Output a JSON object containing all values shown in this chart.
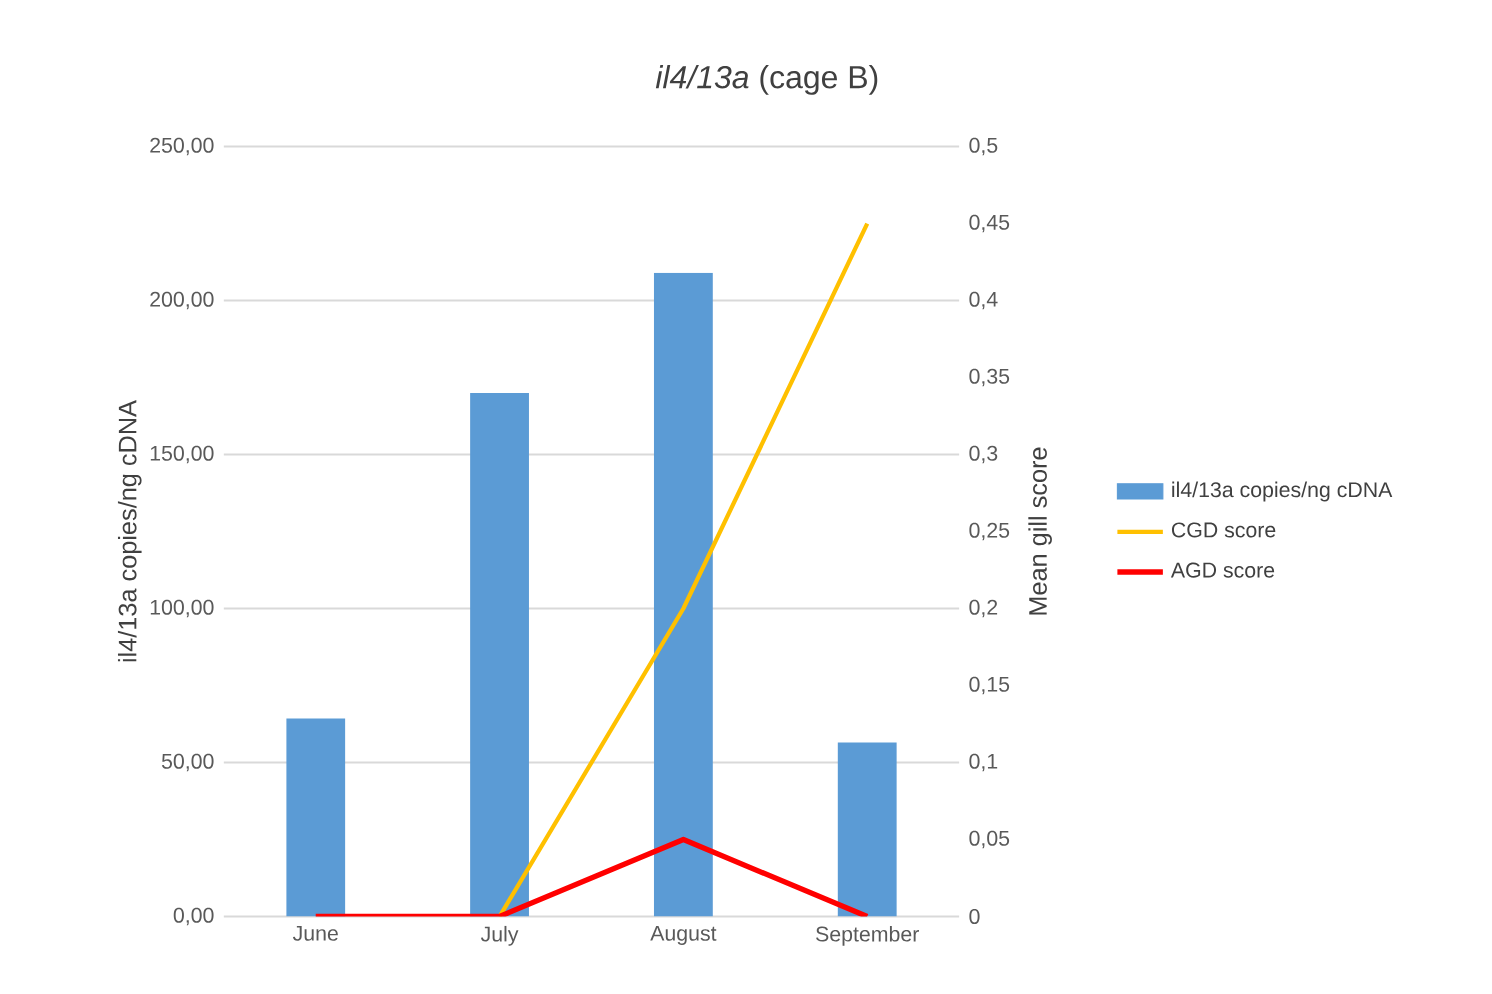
{
  "chart_data": {
    "type": "bar",
    "title": "*il4/13a* (cage B)",
    "ylabel": "il4/13a copies/ng cDNA",
    "y2label": "Mean gill score",
    "categories": [
      "June",
      "July",
      "August",
      "September"
    ],
    "series": [
      {
        "name": "il4/13a copies/ng cDNA",
        "color": "#5b9bd5",
        "values": [
          64.3,
          170,
          209,
          56.5
        ]
      },
      {
        "name": "CGD score",
        "type": "line",
        "axis": "y2",
        "color": "#ffc000",
        "values": [
          null,
          0,
          0.2,
          0.45
        ]
      },
      {
        "name": "AGD score",
        "type": "line",
        "axis": "y2",
        "color": "#ff0000",
        "values": [
          0,
          0,
          0.05,
          0
        ]
      }
    ],
    "ylim": [
      0,
      250
    ],
    "yticks": [
      {
        "value": 0,
        "label": "0,00"
      },
      {
        "value": 50,
        "label": "50,00"
      },
      {
        "value": 100,
        "label": "100,00"
      },
      {
        "value": 150,
        "label": "150,00"
      },
      {
        "value": 200,
        "label": "200,00"
      },
      {
        "value": 250,
        "label": "250,00"
      }
    ],
    "y2lim": [
      0,
      0.5
    ],
    "y2ticks": [
      {
        "value": 0,
        "label": "0"
      },
      {
        "value": 0.05,
        "label": "0,05"
      },
      {
        "value": 0.1,
        "label": "0,1"
      },
      {
        "value": 0.15,
        "label": "0,15"
      },
      {
        "value": 0.2,
        "label": "0,2"
      },
      {
        "value": 0.25,
        "label": "0,25"
      },
      {
        "value": 0.3,
        "label": "0,3"
      },
      {
        "value": 0.35,
        "label": "0,35"
      },
      {
        "value": 0.4,
        "label": "0,4"
      },
      {
        "value": 0.45,
        "label": "0,45"
      },
      {
        "value": 0.5,
        "label": "0,5"
      }
    ],
    "grid": "y",
    "legend": "right",
    "marker": "none"
  }
}
